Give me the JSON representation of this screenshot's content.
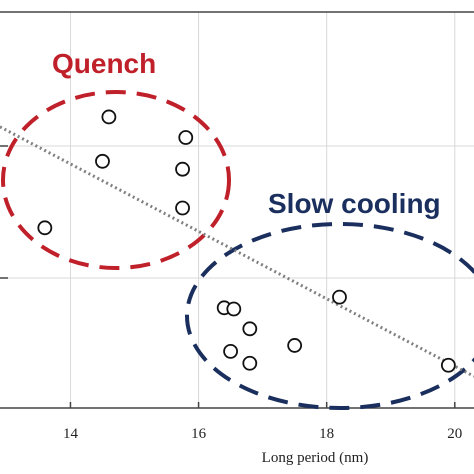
{
  "chart_data": {
    "type": "scatter",
    "title": "",
    "xlabel": "Long period (nm)",
    "ylabel": "",
    "xlim": [
      12.9,
      20.3
    ],
    "ylim": [
      0,
      1
    ],
    "x_ticks": [
      14,
      16,
      18,
      20
    ],
    "x_tick_labels": [
      "14",
      "16",
      "18",
      "20"
    ],
    "grid": true,
    "series": [
      {
        "name": "Quench",
        "points": [
          {
            "x": 13.6,
            "y": 0.455
          },
          {
            "x": 14.5,
            "y": 0.623
          },
          {
            "x": 14.6,
            "y": 0.735
          },
          {
            "x": 15.75,
            "y": 0.505
          },
          {
            "x": 15.75,
            "y": 0.603
          },
          {
            "x": 15.8,
            "y": 0.683
          }
        ]
      },
      {
        "name": "Slow cooling",
        "points": [
          {
            "x": 16.4,
            "y": 0.253
          },
          {
            "x": 16.55,
            "y": 0.25
          },
          {
            "x": 16.5,
            "y": 0.143
          },
          {
            "x": 16.8,
            "y": 0.113
          },
          {
            "x": 16.8,
            "y": 0.2
          },
          {
            "x": 17.5,
            "y": 0.158
          },
          {
            "x": 18.2,
            "y": 0.28
          },
          {
            "x": 19.9,
            "y": 0.108
          }
        ]
      }
    ],
    "trendline": {
      "style": "dotted",
      "from": {
        "x": 12.9,
        "y": 0.71
      },
      "to": {
        "x": 20.3,
        "y": 0.08
      }
    },
    "annotations": [
      {
        "text": "Quench",
        "color": "#c0202a"
      },
      {
        "text": "Slow cooling",
        "color": "#1a2f5e"
      }
    ],
    "colors": {
      "quench": "#c0202a",
      "slow": "#1a2f5e",
      "marker": "#111111",
      "trend": "#808080",
      "grid": "#d8d8d8",
      "axis": "#444444"
    }
  }
}
